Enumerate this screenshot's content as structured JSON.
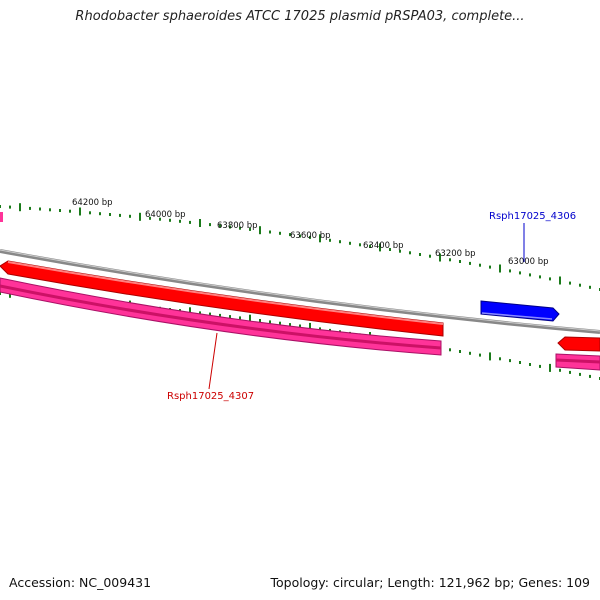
{
  "title": "Rhodobacter sphaeroides ATCC 17025 plasmid pRSPA03, complete...",
  "footer": {
    "accession": "Accession: NC_009431",
    "summary": "Topology: circular; Length: 121,962 bp; Genes: 109"
  },
  "ruler": {
    "labels": [
      "64200 bp",
      "64000 bp",
      "63800 bp",
      "63600 bp",
      "63400 bp",
      "63200 bp",
      "63000 bp"
    ],
    "tick_color": "#1a7a1a"
  },
  "genes": {
    "callout_top": {
      "label": "Rsph17025_4306",
      "color": "#0000cc"
    },
    "callout_bottom": {
      "label": "Rsph17025_4307",
      "color": "#cc0000"
    }
  },
  "colors": {
    "backbone": "#888888",
    "cds_red": "#ff0000",
    "cds_pink": "#ff3399",
    "cds_blue": "#0000ff"
  }
}
